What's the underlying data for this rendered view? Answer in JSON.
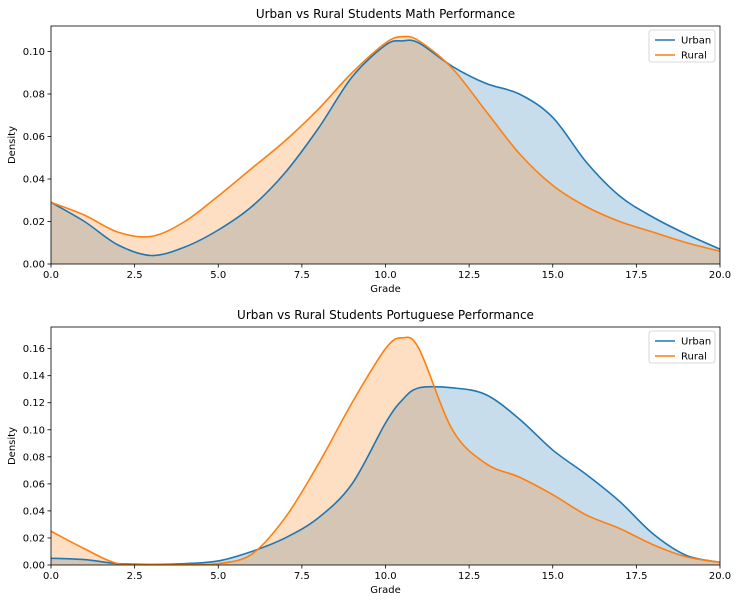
{
  "chart_data": [
    {
      "type": "area",
      "title": "Urban vs Rural Students Math Performance",
      "xlabel": "Grade",
      "ylabel": "Density",
      "xlim": [
        0,
        20
      ],
      "ylim": [
        0,
        0.112
      ],
      "xticks": [
        "0.0",
        "2.5",
        "5.0",
        "7.5",
        "10.0",
        "12.5",
        "15.0",
        "17.5",
        "20.0"
      ],
      "xtick_values": [
        0,
        2.5,
        5,
        7.5,
        10,
        12.5,
        15,
        17.5,
        20
      ],
      "yticks": [
        "0.00",
        "0.02",
        "0.04",
        "0.06",
        "0.08",
        "0.10"
      ],
      "ytick_values": [
        0,
        0.02,
        0.04,
        0.06,
        0.08,
        0.1
      ],
      "legend": "top-right",
      "grid": false,
      "x": [
        0,
        1,
        2,
        3,
        4,
        5,
        6,
        7,
        8,
        9,
        10,
        10.5,
        11,
        12,
        13,
        14,
        15,
        16,
        17,
        18,
        19,
        20
      ],
      "series": [
        {
          "name": "Urban",
          "color": "#1f77b4",
          "values": [
            0.029,
            0.02,
            0.009,
            0.004,
            0.008,
            0.016,
            0.027,
            0.043,
            0.064,
            0.088,
            0.103,
            0.105,
            0.104,
            0.093,
            0.085,
            0.08,
            0.069,
            0.048,
            0.032,
            0.022,
            0.014,
            0.007
          ]
        },
        {
          "name": "Rural",
          "color": "#ff7f0e",
          "values": [
            0.029,
            0.023,
            0.015,
            0.013,
            0.02,
            0.032,
            0.045,
            0.058,
            0.073,
            0.09,
            0.104,
            0.107,
            0.105,
            0.092,
            0.072,
            0.052,
            0.037,
            0.027,
            0.02,
            0.015,
            0.01,
            0.006
          ]
        }
      ]
    },
    {
      "type": "area",
      "title": "Urban vs Rural Students Portuguese Performance",
      "xlabel": "Grade",
      "ylabel": "Density",
      "xlim": [
        0,
        20
      ],
      "ylim": [
        0,
        0.176
      ],
      "xticks": [
        "0.0",
        "2.5",
        "5.0",
        "7.5",
        "10.0",
        "12.5",
        "15.0",
        "17.5",
        "20.0"
      ],
      "xtick_values": [
        0,
        2.5,
        5,
        7.5,
        10,
        12.5,
        15,
        17.5,
        20
      ],
      "yticks": [
        "0.00",
        "0.02",
        "0.04",
        "0.06",
        "0.08",
        "0.10",
        "0.12",
        "0.14",
        "0.16"
      ],
      "ytick_values": [
        0,
        0.02,
        0.04,
        0.06,
        0.08,
        0.1,
        0.12,
        0.14,
        0.16
      ],
      "legend": "top-right",
      "grid": false,
      "x": [
        0,
        1,
        2,
        3,
        4,
        5,
        6,
        7,
        8,
        9,
        10,
        10.5,
        11,
        12,
        13,
        14,
        15,
        16,
        17,
        18,
        19,
        20
      ],
      "series": [
        {
          "name": "Urban",
          "color": "#1f77b4",
          "values": [
            0.005,
            0.004,
            0.001,
            0.0005,
            0.001,
            0.003,
            0.01,
            0.02,
            0.035,
            0.06,
            0.105,
            0.122,
            0.131,
            0.131,
            0.126,
            0.108,
            0.085,
            0.067,
            0.047,
            0.023,
            0.007,
            0.002
          ]
        },
        {
          "name": "Rural",
          "color": "#ff7f0e",
          "values": [
            0.025,
            0.012,
            0.001,
            0.0005,
            0.0003,
            0.001,
            0.008,
            0.035,
            0.075,
            0.12,
            0.16,
            0.168,
            0.16,
            0.1,
            0.075,
            0.065,
            0.052,
            0.037,
            0.027,
            0.015,
            0.006,
            0.002
          ]
        }
      ]
    }
  ]
}
